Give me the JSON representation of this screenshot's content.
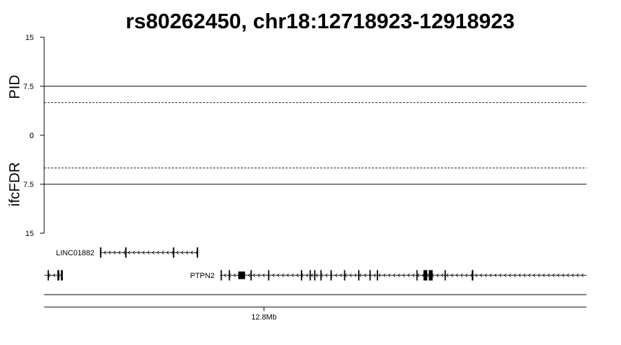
{
  "chart_data": {
    "type": "scatter",
    "title": "rs80262450, chr18:12718923-12918923",
    "region": {
      "chromosome": "chr18",
      "start": 12718923,
      "end": 12918923
    },
    "upper_panel": {
      "ylabel": "PID",
      "ylim": [
        0,
        15
      ],
      "yticks": [
        "15",
        "7.5",
        "0"
      ],
      "thresholds": [
        {
          "value": 7.5,
          "style": "solid"
        },
        {
          "value": 5,
          "style": "dashed"
        }
      ],
      "points": []
    },
    "lower_panel": {
      "ylabel": "ifcFDR",
      "ylim": [
        0,
        15
      ],
      "yticks": [
        "7.5",
        "15"
      ],
      "thresholds": [
        {
          "value": 5,
          "style": "dashed"
        },
        {
          "value": 7.5,
          "style": "solid"
        }
      ],
      "points": []
    },
    "xticks": [
      {
        "label": "12.8Mb",
        "value": 12800000
      }
    ],
    "genes": [
      {
        "name": "LINC01882",
        "strand": "-",
        "start": 12739500,
        "end": 12775700,
        "label_visible": true,
        "exons": [
          [
            12739500,
            12740000
          ],
          [
            12748800,
            12749300
          ],
          [
            12766400,
            12766900
          ],
          [
            12775200,
            12775700
          ]
        ]
      },
      {
        "name": "",
        "strand": "-",
        "start": 12719000,
        "end": 12725800,
        "label_visible": false,
        "exons": [
          [
            12720200,
            12720600
          ],
          [
            12723800,
            12724500
          ],
          [
            12725100,
            12725800
          ]
        ]
      },
      {
        "name": "PTPN2",
        "strand": "-",
        "start": 12783800,
        "end": 12918923,
        "label_visible": true,
        "exons": [
          [
            12784000,
            12784400
          ],
          [
            12787000,
            12787400
          ],
          [
            12790500,
            12793000
          ],
          [
            12795000,
            12795400
          ],
          [
            12801500,
            12801900
          ],
          [
            12813600,
            12814000
          ],
          [
            12816800,
            12817200
          ],
          [
            12818500,
            12818900
          ],
          [
            12820800,
            12821200
          ],
          [
            12824500,
            12824900
          ],
          [
            12829500,
            12829900
          ],
          [
            12834700,
            12835100
          ],
          [
            12838900,
            12839300
          ],
          [
            12841600,
            12842000
          ],
          [
            12856200,
            12856600
          ],
          [
            12858800,
            12860200
          ],
          [
            12860800,
            12862200
          ],
          [
            12866600,
            12867000
          ],
          [
            12876600,
            12877200
          ]
        ]
      }
    ]
  }
}
